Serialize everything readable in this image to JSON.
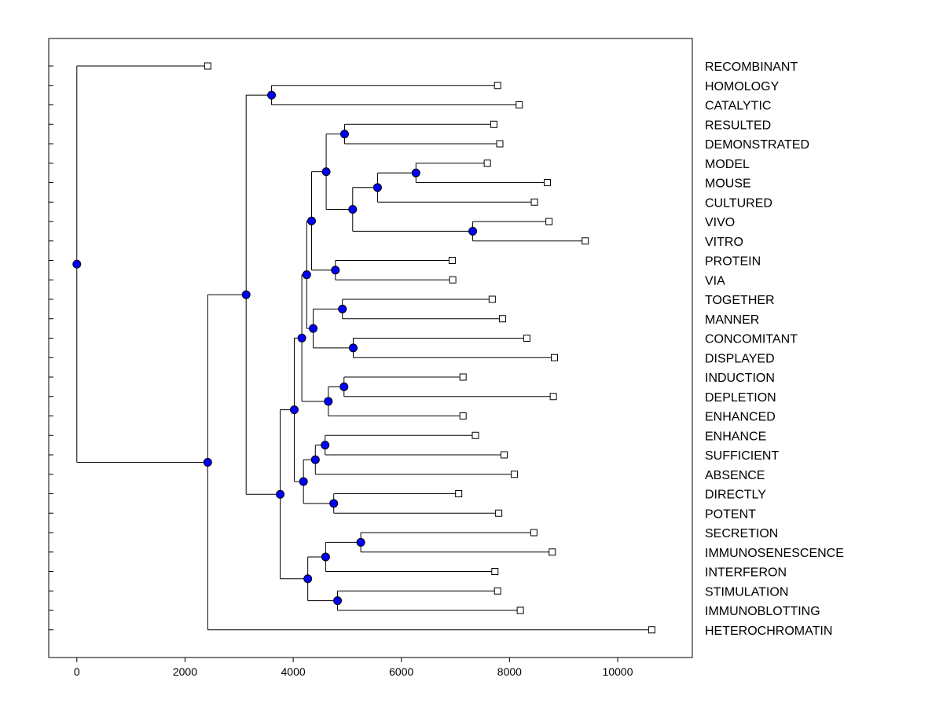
{
  "chart_data": {
    "type": "dendrogram",
    "title": "",
    "xlabel": "",
    "ylabel": "",
    "xlim": [
      -520,
      11380
    ],
    "x_ticks": [
      0,
      2000,
      4000,
      6000,
      8000,
      10000
    ],
    "x_tick_labels": [
      "0",
      "2000",
      "4000",
      "6000",
      "8000",
      "10000"
    ],
    "grid": false,
    "colors": {
      "node_fill": "#0000ff",
      "line": "#000000",
      "leaf_fill": "#ffffff"
    },
    "leaves": [
      {
        "id": "L1",
        "label": "RECOMBINANT",
        "x": 2420
      },
      {
        "id": "L2",
        "label": "HOMOLOGY",
        "x": 7780
      },
      {
        "id": "L3",
        "label": "CATALYTIC",
        "x": 8180
      },
      {
        "id": "L4",
        "label": "RESULTED",
        "x": 7710
      },
      {
        "id": "L5",
        "label": "DEMONSTRATED",
        "x": 7820
      },
      {
        "id": "L6",
        "label": "MODEL",
        "x": 7590
      },
      {
        "id": "L7",
        "label": "MOUSE",
        "x": 8700
      },
      {
        "id": "L8",
        "label": "CULTURED",
        "x": 8460
      },
      {
        "id": "L9",
        "label": "VIVO",
        "x": 8730
      },
      {
        "id": "L10",
        "label": "VITRO",
        "x": 9400
      },
      {
        "id": "L11",
        "label": "PROTEIN",
        "x": 6940
      },
      {
        "id": "L12",
        "label": "VIA",
        "x": 6950
      },
      {
        "id": "L13",
        "label": "TOGETHER",
        "x": 7680
      },
      {
        "id": "L14",
        "label": "MANNER",
        "x": 7870
      },
      {
        "id": "L15",
        "label": "CONCOMITANT",
        "x": 8320
      },
      {
        "id": "L16",
        "label": "DISPLAYED",
        "x": 8830
      },
      {
        "id": "L17",
        "label": "INDUCTION",
        "x": 7140
      },
      {
        "id": "L18",
        "label": "DEPLETION",
        "x": 8810
      },
      {
        "id": "L19",
        "label": "ENHANCED",
        "x": 7140
      },
      {
        "id": "L20",
        "label": "ENHANCE",
        "x": 7370
      },
      {
        "id": "L21",
        "label": "SUFFICIENT",
        "x": 7900
      },
      {
        "id": "L22",
        "label": "ABSENCE",
        "x": 8090
      },
      {
        "id": "L23",
        "label": "DIRECTLY",
        "x": 7060
      },
      {
        "id": "L24",
        "label": "POTENT",
        "x": 7800
      },
      {
        "id": "L25",
        "label": "SECRETION",
        "x": 8450
      },
      {
        "id": "L26",
        "label": "IMMUNOSENESCENCE",
        "x": 8790
      },
      {
        "id": "L27",
        "label": "INTERFERON",
        "x": 7730
      },
      {
        "id": "L28",
        "label": "STIMULATION",
        "x": 7780
      },
      {
        "id": "L29",
        "label": "IMMUNOBLOTTING",
        "x": 8200
      },
      {
        "id": "L30",
        "label": "HETEROCHROMATIN",
        "x": 10630
      }
    ],
    "nodes": [
      {
        "id": "N1",
        "x": 3600,
        "children": [
          "L2",
          "L3"
        ]
      },
      {
        "id": "N2",
        "x": 4950,
        "children": [
          "L4",
          "L5"
        ]
      },
      {
        "id": "N3",
        "x": 6270,
        "children": [
          "L6",
          "L7"
        ]
      },
      {
        "id": "N4",
        "x": 5560,
        "children": [
          "N3",
          "L8"
        ]
      },
      {
        "id": "N5",
        "x": 7320,
        "children": [
          "L9",
          "L10"
        ]
      },
      {
        "id": "N6",
        "x": 5100,
        "children": [
          "N4",
          "N5"
        ]
      },
      {
        "id": "N7",
        "x": 4610,
        "children": [
          "N2",
          "N6"
        ]
      },
      {
        "id": "N8",
        "x": 4780,
        "children": [
          "L11",
          "L12"
        ]
      },
      {
        "id": "N9",
        "x": 4340,
        "children": [
          "N7",
          "N8"
        ]
      },
      {
        "id": "N10",
        "x": 4910,
        "children": [
          "L13",
          "L14"
        ]
      },
      {
        "id": "N11",
        "x": 5110,
        "children": [
          "L15",
          "L16"
        ]
      },
      {
        "id": "N12",
        "x": 4370,
        "children": [
          "N10",
          "N11"
        ]
      },
      {
        "id": "N13",
        "x": 4250,
        "children": [
          "N9",
          "N12"
        ]
      },
      {
        "id": "N14",
        "x": 4940,
        "children": [
          "L17",
          "L18"
        ]
      },
      {
        "id": "N15",
        "x": 4650,
        "children": [
          "N14",
          "L19"
        ]
      },
      {
        "id": "N16",
        "x": 4160,
        "children": [
          "N13",
          "N15"
        ]
      },
      {
        "id": "N17",
        "x": 4590,
        "children": [
          "L20",
          "L21"
        ]
      },
      {
        "id": "N18",
        "x": 4410,
        "children": [
          "N17",
          "L22"
        ]
      },
      {
        "id": "N19",
        "x": 4750,
        "children": [
          "L23",
          "L24"
        ]
      },
      {
        "id": "N20",
        "x": 4190,
        "children": [
          "N18",
          "N19"
        ]
      },
      {
        "id": "N21",
        "x": 4020,
        "children": [
          "N16",
          "N20"
        ]
      },
      {
        "id": "N22",
        "x": 5250,
        "children": [
          "L25",
          "L26"
        ]
      },
      {
        "id": "N23",
        "x": 4600,
        "children": [
          "N22",
          "L27"
        ]
      },
      {
        "id": "N24",
        "x": 4820,
        "children": [
          "L28",
          "L29"
        ]
      },
      {
        "id": "N25",
        "x": 4270,
        "children": [
          "N23",
          "N24"
        ]
      },
      {
        "id": "N26",
        "x": 3760,
        "children": [
          "N21",
          "N25"
        ]
      },
      {
        "id": "N27",
        "x": 3130,
        "children": [
          "N1",
          "N26"
        ]
      },
      {
        "id": "N28",
        "x": 2420,
        "children": [
          "N27",
          "L30"
        ]
      },
      {
        "id": "N29",
        "x": 0,
        "children": [
          "L1",
          "N28"
        ]
      }
    ]
  }
}
